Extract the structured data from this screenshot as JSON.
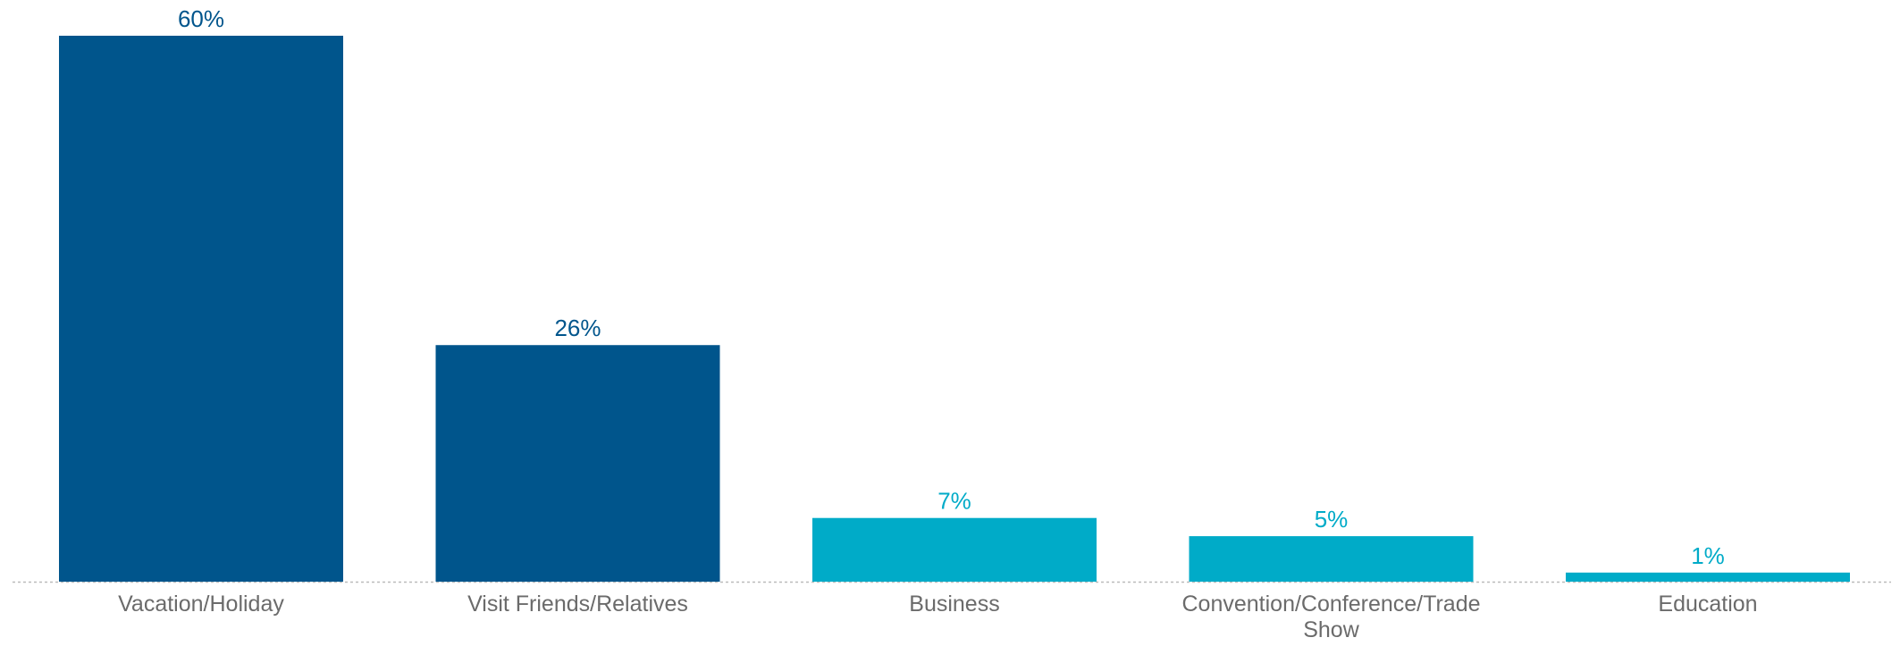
{
  "chart_data": {
    "type": "bar",
    "title": "",
    "xlabel": "",
    "ylabel": "",
    "ylim": [
      0,
      60
    ],
    "grid": false,
    "legend": "none",
    "categories": [
      [
        "Vacation/Holiday"
      ],
      [
        "Visit Friends/Relatives"
      ],
      [
        "Business"
      ],
      [
        "Convention/Conference/Trade",
        "Show"
      ],
      [
        "Education"
      ]
    ],
    "values": [
      60,
      26,
      7,
      5,
      1
    ],
    "value_labels": [
      "60%",
      "26%",
      "7%",
      "5%",
      "1%"
    ],
    "colors": [
      "#00558c",
      "#00558c",
      "#00abc8",
      "#00abc8",
      "#00abc8"
    ],
    "baseline_color": "#bbbbbb",
    "tick_label_color": "#6b6b6b"
  }
}
